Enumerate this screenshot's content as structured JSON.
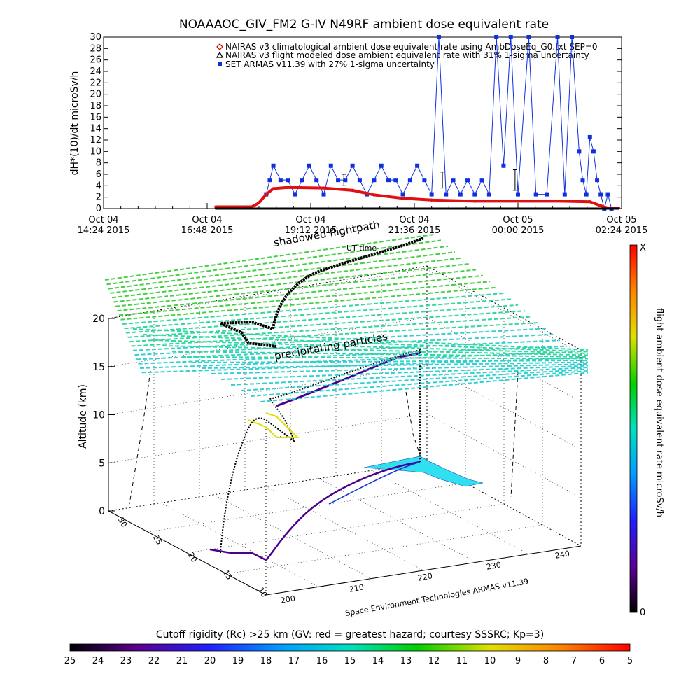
{
  "colors": {
    "nairas_clim": "#e01010",
    "nairas_flight": "#000000",
    "armas": "#1030e0",
    "grid_green": "#40d040",
    "grid_cyan": "#30d0d0"
  },
  "top_chart": {
    "title": "NOAAAOC_GIV_FM2 G-IV    N49RF  ambient dose equivalent rate",
    "ylabel": "dH*(10)/dt microSv/h",
    "xlabel": "UT time",
    "yticks": [
      "0",
      "2",
      "4",
      "6",
      "8",
      "10",
      "12",
      "14",
      "16",
      "18",
      "20",
      "22",
      "24",
      "26",
      "28",
      "30"
    ],
    "xticks": [
      {
        "line1": "Oct 04",
        "line2": "14:24 2015"
      },
      {
        "line1": "Oct 04",
        "line2": "16:48 2015"
      },
      {
        "line1": "Oct 04",
        "line2": "19:12 2015"
      },
      {
        "line1": "Oct 04",
        "line2": "21:36 2015"
      },
      {
        "line1": "Oct 05",
        "line2": "00:00 2015"
      },
      {
        "line1": "Oct 05",
        "line2": "02:24 2015"
      }
    ],
    "legend": [
      {
        "text": "NAIRAS v3 climatological ambient dose equivalent rate using AmbDoseEq_G0.txt SEP=0",
        "symbol": "diamond"
      },
      {
        "text": "NAIRAS v3 flight modeled dose ambient equivalent rate with 31% 1-sigma uncertainty",
        "symbol": "triangle"
      },
      {
        "text": "SET ARMAS v11.39 with 27% 1-sigma uncertainty",
        "symbol": "square"
      }
    ]
  },
  "chart_data": [
    {
      "type": "scatter",
      "title": "NOAAAOC_GIV_FM2 G-IV    N49RF  ambient dose equivalent rate",
      "xlabel": "UT time",
      "ylabel": "dH*(10)/dt microSv/h",
      "xlim": [
        "2015-10-04 14:24",
        "2015-10-05 02:24"
      ],
      "ylim": [
        0,
        30
      ],
      "legend_placement": "top-right",
      "series": [
        {
          "name": "NAIRAS v3 climatological ambient dose equivalent rate using AmbDoseEq_G0.txt SEP=0",
          "color": "#e01010",
          "points": [
            [
              "2015-10-04 17:00",
              0.3
            ],
            [
              "2015-10-04 17:50",
              0.3
            ],
            [
              "2015-10-04 18:00",
              1.0
            ],
            [
              "2015-10-04 18:10",
              2.5
            ],
            [
              "2015-10-04 18:20",
              3.5
            ],
            [
              "2015-10-04 18:40",
              3.7
            ],
            [
              "2015-10-04 19:30",
              3.6
            ],
            [
              "2015-10-04 20:10",
              3.2
            ],
            [
              "2015-10-04 20:40",
              2.4
            ],
            [
              "2015-10-04 21:20",
              1.8
            ],
            [
              "2015-10-04 22:00",
              1.5
            ],
            [
              "2015-10-04 23:00",
              1.3
            ],
            [
              "2015-10-05 00:00",
              1.3
            ],
            [
              "2015-10-05 01:00",
              1.3
            ],
            [
              "2015-10-05 01:40",
              1.2
            ],
            [
              "2015-10-05 01:55",
              0.5
            ],
            [
              "2015-10-05 02:05",
              0.1
            ],
            [
              "2015-10-05 02:20",
              0.1
            ]
          ]
        },
        {
          "name": "NAIRAS v3 flight modeled dose ambient equivalent rate with 31% 1-sigma uncertainty",
          "color": "#000000",
          "points": [
            [
              "2015-10-04 17:00",
              0
            ],
            [
              "2015-10-04 18:00",
              0
            ],
            [
              "2015-10-04 20:00",
              0
            ],
            [
              "2015-10-04 22:00",
              0
            ],
            [
              "2015-10-05 00:00",
              0
            ],
            [
              "2015-10-05 02:20",
              0
            ]
          ],
          "error_bars": [
            {
              "x": "2015-10-04 19:58",
              "y": 5.0,
              "err": 1.0
            },
            {
              "x": "2015-10-04 22:15",
              "y": 5.0,
              "err": 1.4
            },
            {
              "x": "2015-10-04 23:56",
              "y": 5.0,
              "err": 1.8
            }
          ]
        },
        {
          "name": "SET ARMAS v11.39 with 27% 1-sigma uncertainty",
          "color": "#1030e0",
          "points": [
            [
              "2015-10-04 18:10",
              2.5
            ],
            [
              "2015-10-04 18:15",
              5.0
            ],
            [
              "2015-10-04 18:20",
              7.5
            ],
            [
              "2015-10-04 18:30",
              5.0
            ],
            [
              "2015-10-04 18:40",
              5.0
            ],
            [
              "2015-10-04 18:50",
              2.5
            ],
            [
              "2015-10-04 19:00",
              5.0
            ],
            [
              "2015-10-04 19:10",
              7.5
            ],
            [
              "2015-10-04 19:20",
              5.0
            ],
            [
              "2015-10-04 19:30",
              2.5
            ],
            [
              "2015-10-04 19:40",
              7.5
            ],
            [
              "2015-10-04 19:50",
              5.0
            ],
            [
              "2015-10-04 20:00",
              5.0
            ],
            [
              "2015-10-04 20:10",
              7.5
            ],
            [
              "2015-10-04 20:20",
              5.0
            ],
            [
              "2015-10-04 20:30",
              2.5
            ],
            [
              "2015-10-04 20:40",
              5.0
            ],
            [
              "2015-10-04 20:50",
              7.5
            ],
            [
              "2015-10-04 21:00",
              5.0
            ],
            [
              "2015-10-04 21:10",
              5.0
            ],
            [
              "2015-10-04 21:20",
              2.5
            ],
            [
              "2015-10-04 21:30",
              5.0
            ],
            [
              "2015-10-04 21:40",
              7.5
            ],
            [
              "2015-10-04 21:50",
              5.0
            ],
            [
              "2015-10-04 22:00",
              2.5
            ],
            [
              "2015-10-04 22:10",
              30.0
            ],
            [
              "2015-10-04 22:20",
              2.5
            ],
            [
              "2015-10-04 22:30",
              5.0
            ],
            [
              "2015-10-04 22:40",
              2.5
            ],
            [
              "2015-10-04 22:50",
              5.0
            ],
            [
              "2015-10-04 23:00",
              2.5
            ],
            [
              "2015-10-04 23:10",
              5.0
            ],
            [
              "2015-10-04 23:20",
              2.5
            ],
            [
              "2015-10-04 23:30",
              30.0
            ],
            [
              "2015-10-04 23:40",
              7.5
            ],
            [
              "2015-10-04 23:50",
              30.0
            ],
            [
              "2015-10-05 00:00",
              2.5
            ],
            [
              "2015-10-05 00:15",
              30.0
            ],
            [
              "2015-10-05 00:25",
              2.5
            ],
            [
              "2015-10-05 00:40",
              2.5
            ],
            [
              "2015-10-05 00:55",
              30.0
            ],
            [
              "2015-10-05 01:05",
              2.5
            ],
            [
              "2015-10-05 01:15",
              30.0
            ],
            [
              "2015-10-05 01:25",
              10.0
            ],
            [
              "2015-10-05 01:30",
              5.0
            ],
            [
              "2015-10-05 01:35",
              2.5
            ],
            [
              "2015-10-05 01:40",
              12.5
            ],
            [
              "2015-10-05 01:45",
              10.0
            ],
            [
              "2015-10-05 01:50",
              5.0
            ],
            [
              "2015-10-05 01:55",
              2.5
            ],
            [
              "2015-10-05 02:00",
              0.0
            ],
            [
              "2015-10-05 02:05",
              2.5
            ],
            [
              "2015-10-05 02:10",
              0.0
            ]
          ]
        }
      ]
    },
    {
      "type": "scatter",
      "title": "",
      "zlabel": "Altitude (km)",
      "zlim": [
        0,
        20
      ],
      "zticks": [
        "0",
        "5",
        "10",
        "15",
        "20"
      ],
      "xticks": [
        "200",
        "210",
        "220",
        "230",
        "240"
      ],
      "yticks": [
        "10",
        "15",
        "20",
        "25",
        "30"
      ],
      "annotations": [
        "shadowed flightpath",
        "UT time",
        "precipitating particles"
      ],
      "credit": "Space Environment Technologies ARMAS v11.39",
      "colorbar_label": "flight ambient dose equivalent rate microSv/h",
      "colorbar_range": [
        "0",
        "X"
      ]
    }
  ],
  "annotations": {
    "shadow": "shadowed flightpath",
    "ut": "UT time",
    "precip": "precipitating particles"
  },
  "axes3d": {
    "zlabel": "Altitude (km)",
    "zticks": [
      "0",
      "5",
      "10",
      "15",
      "20"
    ],
    "xticks": [
      "200",
      "210",
      "220",
      "230",
      "240"
    ],
    "yticks": [
      "10",
      "15",
      "20",
      "25",
      "30"
    ],
    "credit": "Space Environment Technologies ARMAS v11.39"
  },
  "colorbar_right": {
    "label": "flight ambient dose equivalent rate microSv/h",
    "top": "X",
    "bottom": "0"
  },
  "colorbar_bottom": {
    "title": "Cutoff rigidity (Rc) >25 km (GV: red = greatest hazard; courtesy SSSRC; Kp=3)",
    "ticks": [
      "25",
      "24",
      "23",
      "22",
      "21",
      "20",
      "19",
      "18",
      "17",
      "16",
      "15",
      "14",
      "13",
      "12",
      "11",
      "10",
      "9",
      "8",
      "7",
      "6",
      "5"
    ]
  }
}
